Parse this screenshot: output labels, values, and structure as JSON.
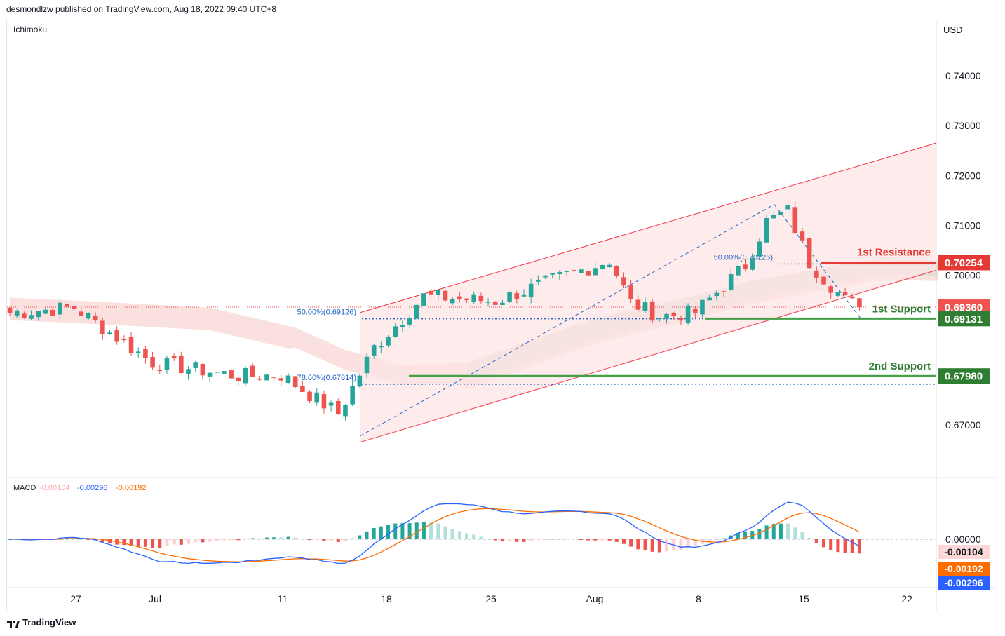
{
  "header": {
    "publisher_line": "desmondlzw published on TradingView.com, Aug 18, 2022 09:40 UTC+8"
  },
  "indicator_label": "Ichimoku",
  "currency_label": "USD",
  "footer": {
    "brand": "TradingView"
  },
  "colors": {
    "up": "#26a69a",
    "down": "#ef5350",
    "channel_fill": "#fde5e5",
    "channel_line": "#f23645",
    "resistance": "#e53935",
    "support": "#43a047",
    "fib": "#1e63c8",
    "macd": "#2962ff",
    "signal": "#ff6d00"
  },
  "chart_data": [
    {
      "type": "candlestick",
      "title": "",
      "y_axis": {
        "unit": "USD",
        "ticks": [
          "0.74000",
          "0.73000",
          "0.72000",
          "0.71000",
          "0.70000",
          "0.67000"
        ],
        "range": [
          0.6625,
          0.7455
        ]
      },
      "x_axis": {
        "ticks": [
          "27",
          "Jul",
          "11",
          "18",
          "25",
          "Aug",
          "8",
          "15",
          "22"
        ]
      },
      "approx_trend": {
        "dates": [
          "Jun 22",
          "Jun 27",
          "Jul 1",
          "Jul 6",
          "Jul 11",
          "Jul 14",
          "Jul 18",
          "Jul 21",
          "Jul 25",
          "Jul 28",
          "Aug 1",
          "Aug 3",
          "Aug 5",
          "Aug 8",
          "Aug 10",
          "Aug 11",
          "Aug 12",
          "Aug 15",
          "Aug 17",
          "Aug 18"
        ],
        "close": [
          0.6925,
          0.6935,
          0.6825,
          0.6798,
          0.68,
          0.6722,
          0.6855,
          0.6958,
          0.6948,
          0.699,
          0.703,
          0.6945,
          0.6918,
          0.6925,
          0.702,
          0.7108,
          0.7128,
          0.7025,
          0.695,
          0.6936
        ]
      },
      "annotations": [
        {
          "label": "1st Resistance",
          "price_label": "0.70254",
          "value": 0.70254
        },
        {
          "label": "1st Support",
          "price_label": "0.69131",
          "value": 0.69131
        },
        {
          "label": "2nd Support",
          "price_label": "0.67980",
          "value": 0.6798
        },
        {
          "label": "",
          "price_label": "0.69360",
          "value": 0.6936
        }
      ],
      "fibonacci": [
        {
          "label": "50.00%(0.69126)",
          "value": 0.69126
        },
        {
          "label": "78.60%(0.67814)",
          "value": 0.67814
        },
        {
          "label": "50.00%(0.70226)",
          "value": 0.70226
        }
      ]
    },
    {
      "type": "macd",
      "legend": {
        "name": "MACD",
        "hist": "-0.00104",
        "macd": "-0.00296",
        "signal": "-0.00192"
      },
      "y_ticks": [
        "0.00000"
      ],
      "last_values": [
        "-0.00104",
        "-0.00192",
        "-0.00296"
      ]
    }
  ]
}
